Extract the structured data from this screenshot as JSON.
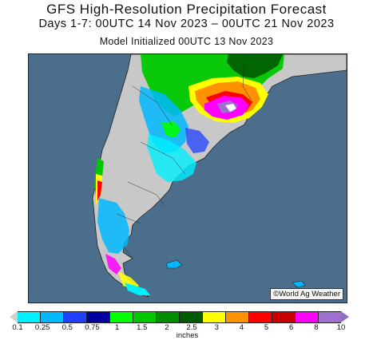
{
  "header": {
    "title": "GFS High-Resolution Precipitation Forecast",
    "subtitle": "Days 1-7: 00UTC 14 Nov 2023 – 00UTC 21 Nov 2023",
    "init": "Model Initialized 00UTC 13 Nov 2023"
  },
  "map": {
    "region": "southern South America",
    "ocean_color": "#4a6e8c",
    "land_color": "#c8c8c8",
    "credit": "©World Ag Weather"
  },
  "legend": {
    "units": "inches",
    "ticks": [
      "0.1",
      "0.25",
      "0.5",
      "0.75",
      "1",
      "1.5",
      "2",
      "2.5",
      "3",
      "4",
      "5",
      "6",
      "8",
      "10"
    ],
    "colors": [
      "#00f0ff",
      "#00b8ff",
      "#2040ff",
      "#0000a0",
      "#00ff00",
      "#00c800",
      "#008c00",
      "#005a00",
      "#ffff00",
      "#ff9000",
      "#ff0000",
      "#c80000",
      "#ff00ff",
      "#9f6fd0"
    ]
  }
}
